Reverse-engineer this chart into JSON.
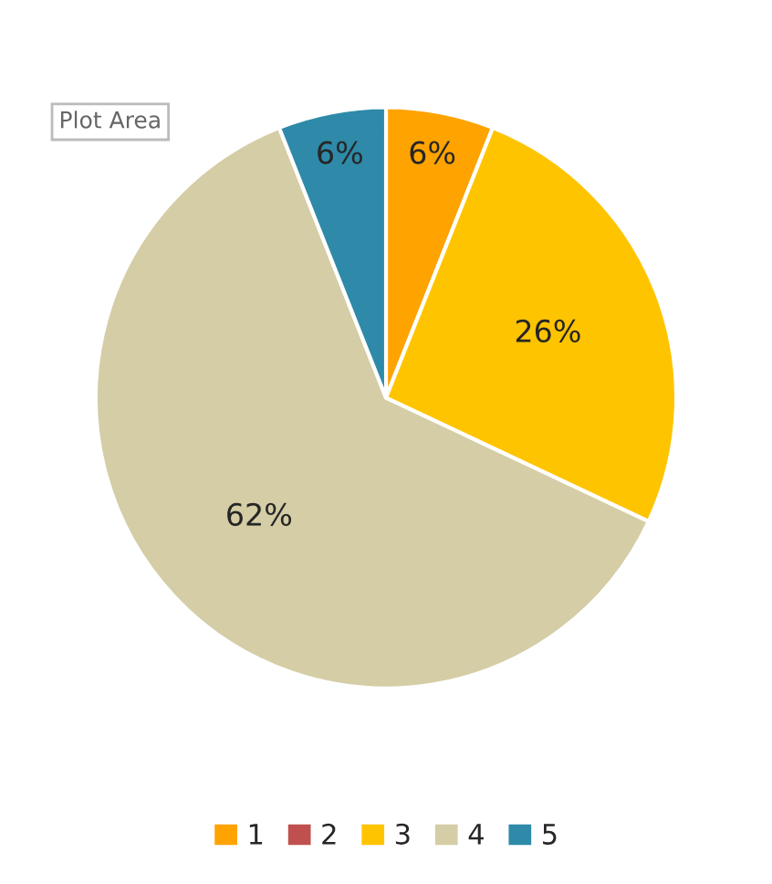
{
  "chart_data": {
    "type": "pie",
    "categories": [
      "1",
      "2",
      "3",
      "4",
      "5"
    ],
    "values": [
      6,
      0,
      26,
      62,
      6
    ],
    "colors": [
      "#ffa300",
      "#c0504d",
      "#ffc400",
      "#d4cda6",
      "#2e8aa8"
    ],
    "value_labels": [
      "6%",
      null,
      "26%",
      "62%",
      "6%"
    ],
    "annotations": [
      "Plot Area"
    ],
    "legend": "bottom"
  }
}
